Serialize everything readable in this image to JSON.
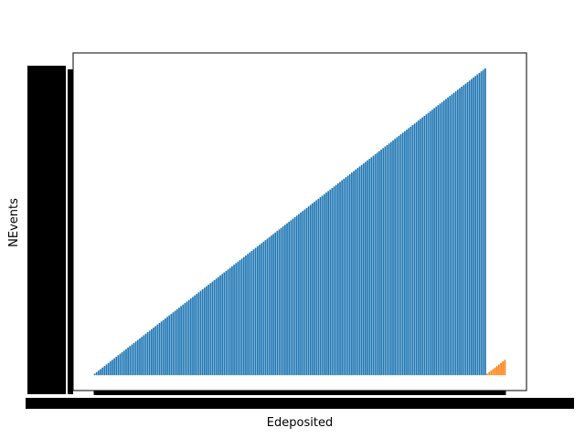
{
  "chart_data": {
    "type": "bar",
    "xlabel": "Edeposited",
    "ylabel": "NEvents",
    "grid": false,
    "legend": "none",
    "x_tick_labels_illegible": true,
    "y_tick_labels_illegible": true,
    "series": [
      {
        "color": "#1f77b4",
        "x_start": 1,
        "x_step": 1,
        "values": [
          1,
          2,
          3,
          4,
          5,
          6,
          7,
          8,
          9,
          10,
          11,
          12,
          13,
          14,
          15,
          16,
          17,
          18,
          19,
          20,
          21,
          22,
          23,
          24,
          25,
          26,
          27,
          28,
          29,
          30,
          31,
          32,
          33,
          34,
          35,
          36,
          37,
          38,
          39,
          40,
          41,
          42,
          43,
          44,
          45,
          46,
          47,
          48,
          49,
          50,
          51,
          52,
          53,
          54,
          55,
          56,
          57,
          58,
          59,
          60,
          61,
          62,
          63,
          64,
          65,
          66,
          67,
          68,
          69,
          70,
          71,
          72,
          73,
          74,
          75,
          76,
          77,
          78,
          79,
          80,
          81,
          82,
          83,
          84,
          85,
          86,
          87,
          88,
          89,
          90,
          91,
          92,
          93,
          94,
          95,
          96,
          97,
          98,
          99,
          100,
          101,
          102,
          103,
          104,
          105,
          106,
          107,
          108,
          109,
          110,
          111,
          112,
          113,
          114,
          115,
          116,
          117,
          118,
          119,
          120,
          121,
          122,
          123,
          124,
          125,
          126,
          127,
          128,
          129,
          130,
          131,
          132,
          133,
          134,
          135,
          136,
          137,
          138,
          139,
          140,
          141,
          142,
          143,
          144,
          145,
          146,
          147,
          148,
          149,
          150,
          151,
          152,
          153,
          154,
          155,
          156,
          157,
          158,
          159,
          160,
          161,
          162,
          163,
          164,
          165,
          166,
          167,
          168,
          169,
          170,
          171,
          172,
          173,
          174,
          175,
          176,
          177,
          178,
          179,
          180,
          181,
          182,
          183,
          184,
          185,
          186,
          187,
          188,
          189,
          190,
          191,
          192,
          193,
          194,
          195,
          196,
          197,
          198,
          199,
          200
        ]
      },
      {
        "color": "#ff7f0e",
        "x_start": 201,
        "x_step": 1,
        "values": [
          1,
          2,
          3,
          4,
          5,
          6,
          7,
          8,
          9,
          10
        ]
      }
    ],
    "xlim": [
      -10,
      221
    ],
    "ylim": [
      -10,
      210
    ]
  }
}
